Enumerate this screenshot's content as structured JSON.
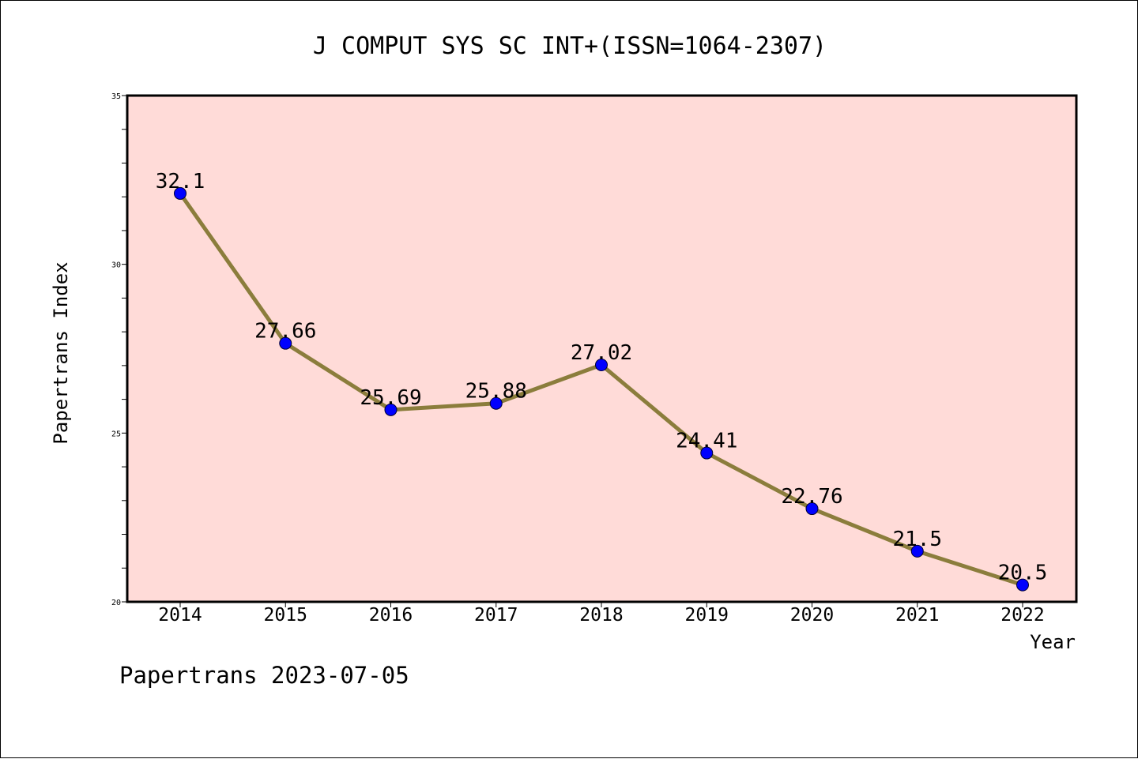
{
  "chart_data": {
    "type": "line",
    "title": "J COMPUT SYS SC INT+(ISSN=1064-2307)",
    "xlabel": "Year",
    "ylabel": "Papertrans Index",
    "x": [
      "2014",
      "2015",
      "2016",
      "2017",
      "2018",
      "2019",
      "2020",
      "2021",
      "2022"
    ],
    "series": [
      {
        "values": [
          32.1,
          27.66,
          25.69,
          25.88,
          27.02,
          24.41,
          22.76,
          21.5,
          20.5
        ],
        "labels": [
          "32.1",
          "27.66",
          "25.69",
          "25.88",
          "27.02",
          "24.41",
          "22.76",
          "21.5",
          "20.5"
        ]
      }
    ],
    "ylim": [
      20,
      35
    ],
    "yticks": [
      "20",
      "25",
      "30",
      "35"
    ],
    "grid": false,
    "legend": "none",
    "colors": {
      "plot_background": "#ffdbd8",
      "line": "#8b7d3c",
      "marker": "#0000ff"
    }
  },
  "footer": {
    "text": "Papertrans 2023-07-05"
  }
}
